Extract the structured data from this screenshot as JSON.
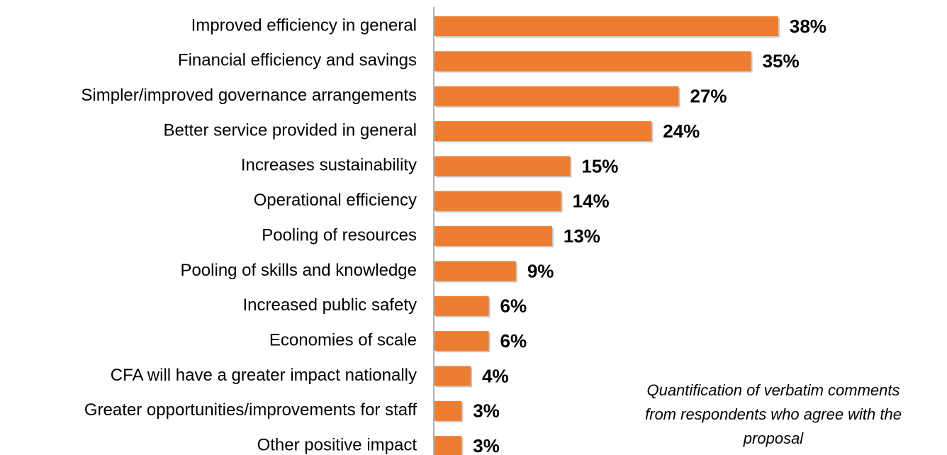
{
  "chart_data": {
    "type": "barh",
    "categories": [
      "Improved efficiency in general",
      "Financial efficiency and savings",
      "Simpler/improved governance arrangements",
      "Better service provided in general",
      "Increases sustainability",
      "Operational efficiency",
      "Pooling of resources",
      "Pooling of skills and knowledge",
      "Increased public safety",
      "Economies of scale",
      "CFA will have a greater impact nationally",
      "Greater opportunities/improvements for staff",
      "Other positive impact"
    ],
    "values": [
      38,
      35,
      27,
      24,
      15,
      14,
      13,
      9,
      6,
      6,
      4,
      3,
      3
    ],
    "value_labels": [
      "38%",
      "35%",
      "27%",
      "24%",
      "15%",
      "14%",
      "13%",
      "9%",
      "6%",
      "6%",
      "4%",
      "3%",
      "3%"
    ],
    "color": "#ed7d31",
    "annotation": [
      "Quantification of verbatim comments",
      "from respondents who agree with the",
      "proposal"
    ]
  }
}
